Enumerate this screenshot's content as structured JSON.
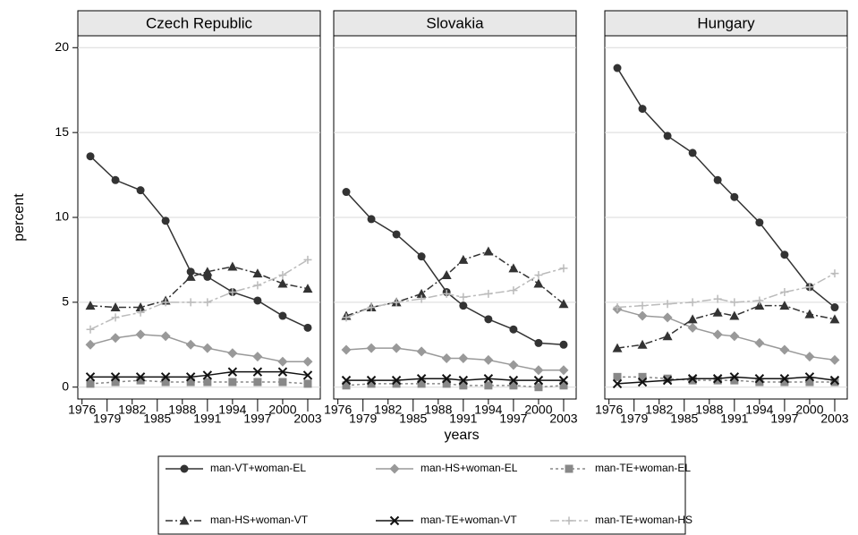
{
  "chart_data": {
    "type": "line",
    "x_label": "years",
    "y_label": "percent",
    "x": [
      1977,
      1980,
      1983,
      1986,
      1989,
      1991,
      1994,
      1997,
      2000,
      2003
    ],
    "xlim": [
      1975.5,
      2004.5
    ],
    "xticks": [
      1976,
      1979,
      1982,
      1985,
      1988,
      1991,
      1994,
      1997,
      2000,
      2003
    ],
    "ylim": [
      -0.7,
      20.7
    ],
    "yticks": [
      0,
      5,
      10,
      15,
      20
    ],
    "grid": true,
    "series": [
      {
        "name": "man-VT+woman-EL",
        "color": "#333333",
        "marker": "circle",
        "dash": ""
      },
      {
        "name": "man-HS+woman-EL",
        "color": "#999999",
        "marker": "diamond",
        "dash": ""
      },
      {
        "name": "man-TE+woman-EL",
        "color": "#888888",
        "marker": "square",
        "dash": "3,3"
      },
      {
        "name": "man-HS+woman-VT",
        "color": "#333333",
        "marker": "triangle",
        "dash": "8,3,2,3"
      },
      {
        "name": "man-TE+woman-VT",
        "color": "#111111",
        "marker": "x",
        "dash": ""
      },
      {
        "name": "man-TE+woman-HS",
        "color": "#bbbbbb",
        "marker": "plus",
        "dash": "10,3,3,3"
      }
    ],
    "panels": [
      {
        "title": "Czech Republic",
        "values": [
          [
            13.6,
            12.2,
            11.6,
            9.8,
            6.8,
            6.5,
            5.6,
            5.1,
            4.2,
            3.5
          ],
          [
            2.5,
            2.9,
            3.1,
            3.0,
            2.5,
            2.3,
            2.0,
            1.8,
            1.5,
            1.5
          ],
          [
            0.2,
            0.3,
            0.4,
            0.3,
            0.3,
            0.3,
            0.3,
            0.3,
            0.3,
            0.2
          ],
          [
            4.8,
            4.7,
            4.7,
            5.1,
            6.5,
            6.8,
            7.1,
            6.7,
            6.1,
            5.8
          ],
          [
            0.6,
            0.6,
            0.6,
            0.6,
            0.6,
            0.7,
            0.9,
            0.9,
            0.9,
            0.7
          ],
          [
            3.4,
            4.1,
            4.4,
            5.0,
            5.0,
            5.0,
            5.6,
            6.0,
            6.6,
            7.5
          ]
        ]
      },
      {
        "title": "Slovakia",
        "values": [
          [
            11.5,
            9.9,
            9.0,
            7.7,
            5.6,
            4.8,
            4.0,
            3.4,
            2.6,
            2.5
          ],
          [
            2.2,
            2.3,
            2.3,
            2.1,
            1.7,
            1.7,
            1.6,
            1.3,
            1.0,
            1.0
          ],
          [
            0.1,
            0.2,
            0.2,
            0.2,
            0.2,
            0.1,
            0.1,
            0.1,
            0.0,
            0.1
          ],
          [
            4.2,
            4.7,
            5.0,
            5.5,
            6.6,
            7.5,
            8.0,
            7.0,
            6.1,
            4.9
          ],
          [
            0.4,
            0.4,
            0.4,
            0.5,
            0.5,
            0.4,
            0.5,
            0.4,
            0.4,
            0.4
          ],
          [
            4.1,
            4.7,
            5.0,
            5.2,
            5.5,
            5.3,
            5.5,
            5.7,
            6.6,
            7.0
          ]
        ]
      },
      {
        "title": "Hungary",
        "values": [
          [
            18.8,
            16.4,
            14.8,
            13.8,
            12.2,
            11.2,
            9.7,
            7.8,
            5.9,
            4.7
          ],
          [
            4.6,
            4.2,
            4.1,
            3.5,
            3.1,
            3.0,
            2.6,
            2.2,
            1.8,
            1.6
          ],
          [
            0.6,
            0.6,
            0.5,
            0.4,
            0.4,
            0.4,
            0.3,
            0.3,
            0.3,
            0.3
          ],
          [
            2.3,
            2.5,
            3.0,
            4.0,
            4.4,
            4.2,
            4.8,
            4.8,
            4.3,
            4.0
          ],
          [
            0.2,
            0.3,
            0.4,
            0.5,
            0.5,
            0.6,
            0.5,
            0.5,
            0.6,
            0.4
          ],
          [
            4.7,
            4.8,
            4.9,
            5.0,
            5.2,
            5.0,
            5.1,
            5.6,
            5.9,
            6.7
          ]
        ]
      }
    ]
  }
}
